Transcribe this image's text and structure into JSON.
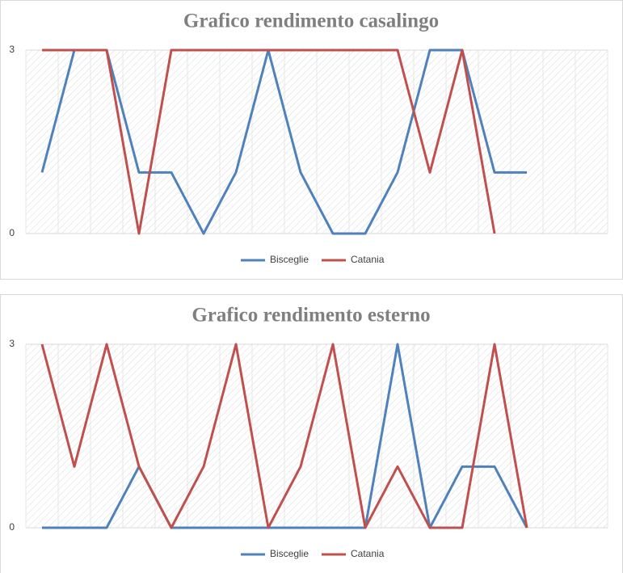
{
  "chart_data": [
    {
      "type": "line",
      "title": "Grafico rendimento casalingo",
      "categories": [
        null,
        null,
        null,
        null,
        null,
        null,
        null,
        null,
        null,
        null,
        null,
        null,
        null,
        null,
        null,
        null,
        null,
        null
      ],
      "series": [
        {
          "name": "Bisceglie",
          "color": "#4f81bd",
          "values": [
            1,
            3,
            3,
            1,
            1,
            0,
            1,
            3,
            1,
            0,
            0,
            1,
            3,
            3,
            1,
            1,
            null,
            null
          ]
        },
        {
          "name": "Catania",
          "color": "#c0504d",
          "values": [
            3,
            3,
            3,
            0,
            3,
            3,
            3,
            3,
            3,
            3,
            3,
            3,
            1,
            3,
            0,
            null,
            null,
            null
          ]
        }
      ],
      "ylim": [
        0,
        3
      ],
      "yticks": [
        0,
        3
      ],
      "legend": "bottom"
    },
    {
      "type": "line",
      "title": "Grafico rendimento esterno",
      "categories": [
        null,
        null,
        null,
        null,
        null,
        null,
        null,
        null,
        null,
        null,
        null,
        null,
        null,
        null,
        null,
        null,
        null,
        null
      ],
      "series": [
        {
          "name": "Bisceglie",
          "color": "#4f81bd",
          "values": [
            0,
            0,
            0,
            1,
            0,
            0,
            0,
            0,
            0,
            0,
            0,
            3,
            0,
            1,
            1,
            0,
            null,
            null
          ]
        },
        {
          "name": "Catania",
          "color": "#c0504d",
          "values": [
            3,
            1,
            3,
            1,
            0,
            1,
            3,
            0,
            1,
            3,
            0,
            1,
            0,
            0,
            3,
            0,
            null,
            null
          ]
        }
      ],
      "ylim": [
        0,
        3
      ],
      "yticks": [
        0,
        3
      ],
      "legend": "bottom"
    }
  ]
}
